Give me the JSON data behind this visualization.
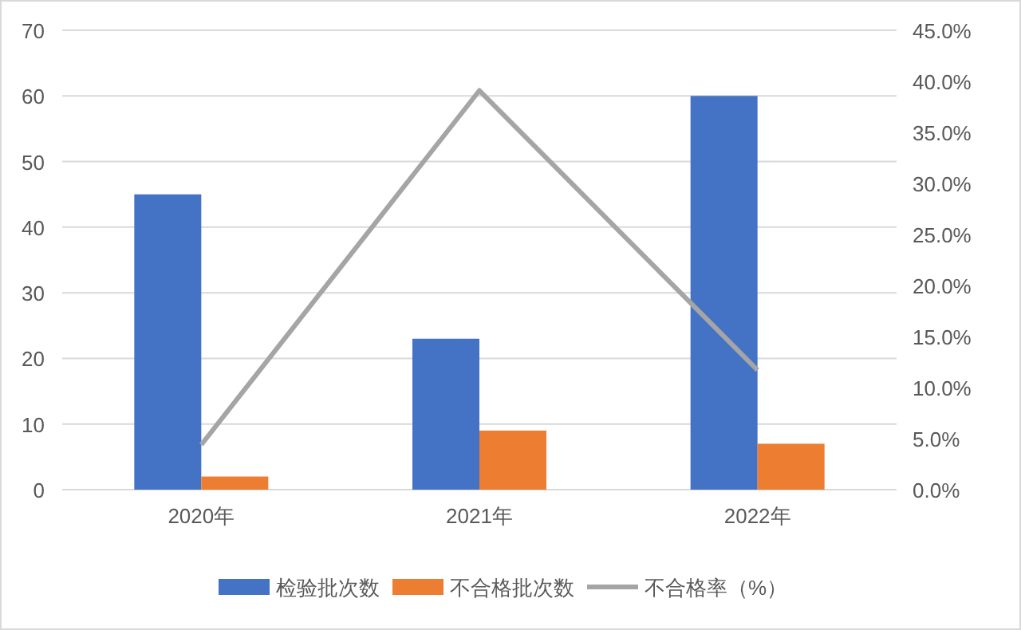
{
  "chart_data": {
    "type": "bar",
    "categories": [
      "2020年",
      "2021年",
      "2022年"
    ],
    "series": [
      {
        "name": "检验批次数",
        "color": "#4472c4",
        "values": [
          45,
          23,
          60
        ]
      },
      {
        "name": "不合格批次数",
        "color": "#ed7d31",
        "values": [
          2,
          9,
          7
        ]
      },
      {
        "name": "不合格率（%）",
        "type": "line",
        "axis": "y2",
        "color": "#a5a5a5",
        "values": [
          4.4,
          39.1,
          11.7
        ]
      }
    ],
    "ylim": [
      0,
      70
    ],
    "yticks": [
      0,
      10,
      20,
      30,
      40,
      50,
      60,
      70
    ],
    "y2lim": [
      0,
      45
    ],
    "y2ticks": [
      {
        "value": 0,
        "label": "0.0%"
      },
      {
        "value": 5,
        "label": "5.0%"
      },
      {
        "value": 10,
        "label": "10.0%"
      },
      {
        "value": 15,
        "label": "15.0%"
      },
      {
        "value": 20,
        "label": "20.0%"
      },
      {
        "value": 25,
        "label": "25.0%"
      },
      {
        "value": 30,
        "label": "30.0%"
      },
      {
        "value": 35,
        "label": "35.0%"
      },
      {
        "value": 40,
        "label": "40.0%"
      },
      {
        "value": 45,
        "label": "45.0%"
      }
    ],
    "grid": "y",
    "legend": "bottom",
    "marker": "none",
    "line_style": "solid"
  }
}
